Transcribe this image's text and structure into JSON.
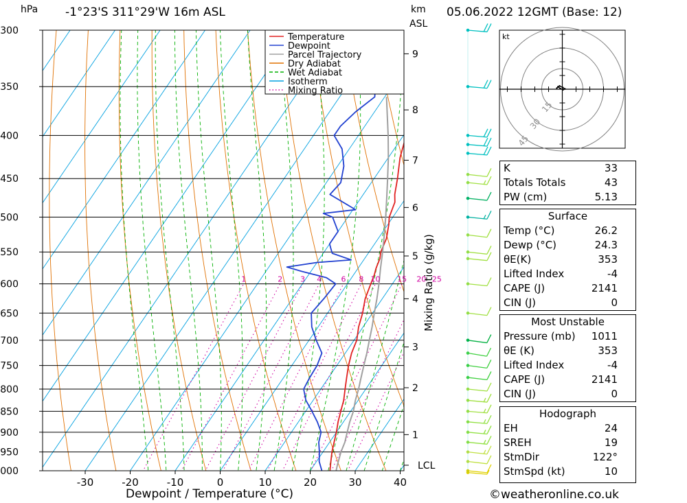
{
  "header": {
    "pressure_unit": "hPa",
    "location": "-1°23'S 311°29'W 16m ASL",
    "height_unit_line1": "km",
    "height_unit_line2": "ASL",
    "datetime": "05.06.2022 12GMT (Base: 12)"
  },
  "chart_data": [
    {
      "type": "line",
      "subtype": "skew-T log-P diagram",
      "xlabel": "Dewpoint / Temperature (°C)",
      "ylabel": "hPa",
      "secondary_ylabel": "km ASL",
      "mixing_ratio_axis_label": "Mixing Ratio (g/kg)",
      "x_ticks": [
        -30,
        -20,
        -10,
        0,
        10,
        20,
        30,
        40
      ],
      "x_tick_labels": [
        "-30",
        "-20",
        "-10",
        "0",
        "10",
        "20",
        "30",
        "40"
      ],
      "y_ticks": [
        300,
        350,
        400,
        450,
        500,
        550,
        600,
        650,
        700,
        750,
        800,
        850,
        900,
        950,
        1000
      ],
      "y_tick_labels": [
        "300",
        "350",
        "400",
        "450",
        "500",
        "550",
        "600",
        "650",
        "700",
        "750",
        "800",
        "850",
        "900",
        "950",
        "1000"
      ],
      "ylim": [
        1000,
        300
      ],
      "y_scale": "log",
      "height_ticks_km": [
        {
          "label": "9",
          "p": 320
        },
        {
          "label": "8",
          "p": 373
        },
        {
          "label": "7",
          "p": 428
        },
        {
          "label": "6",
          "p": 487
        },
        {
          "label": "5",
          "p": 556
        },
        {
          "label": "4",
          "p": 625
        },
        {
          "label": "3",
          "p": 713
        },
        {
          "label": "2",
          "p": 797
        },
        {
          "label": "1",
          "p": 906
        },
        {
          "label": "LCL",
          "p": 985
        }
      ],
      "mixing_ratio_labels": [
        "1",
        "2",
        "3",
        "4",
        "6",
        "8",
        "10",
        "15",
        "20",
        "25"
      ],
      "mixing_ratio_values": [
        1,
        2,
        3,
        4,
        6,
        8,
        10,
        15,
        20,
        25
      ],
      "legend": {
        "placement": "top-right",
        "entries": [
          {
            "name": "Temperature",
            "color": "#e02020",
            "style": "solid"
          },
          {
            "name": "Dewpoint",
            "color": "#2040d0",
            "style": "solid"
          },
          {
            "name": "Parcel Trajectory",
            "color": "#a0a0a0",
            "style": "solid"
          },
          {
            "name": "Dry Adiabat",
            "color": "#e07000",
            "style": "solid"
          },
          {
            "name": "Wet Adiabat",
            "color": "#00b000",
            "style": "dashed"
          },
          {
            "name": "Isotherm",
            "color": "#00a0e0",
            "style": "solid"
          },
          {
            "name": "Mixing Ratio",
            "color": "#d000a0",
            "style": "dotted"
          }
        ]
      },
      "series": [
        {
          "name": "Temperature",
          "color": "#e02020",
          "points": [
            [
              1011,
              26.2
            ],
            [
              1000,
              24.4
            ],
            [
              975,
              23.2
            ],
            [
              950,
              22.0
            ],
            [
              925,
              21.0
            ],
            [
              900,
              20.0
            ],
            [
              875,
              18.8
            ],
            [
              850,
              17.8
            ],
            [
              825,
              16.8
            ],
            [
              800,
              15.4
            ],
            [
              775,
              14.0
            ],
            [
              750,
              12.6
            ],
            [
              725,
              11.4
            ],
            [
              700,
              10.6
            ],
            [
              675,
              9.0
            ],
            [
              650,
              7.8
            ],
            [
              625,
              6.2
            ],
            [
              600,
              5.2
            ],
            [
              585,
              4.6
            ],
            [
              575,
              4.0
            ],
            [
              560,
              3.4
            ],
            [
              550,
              2.6
            ],
            [
              530,
              1.8
            ],
            [
              510,
              0.2
            ],
            [
              500,
              -0.8
            ],
            [
              480,
              -1.8
            ],
            [
              470,
              -3.0
            ],
            [
              450,
              -4.8
            ],
            [
              425,
              -7.4
            ],
            [
              400,
              -9.4
            ],
            [
              375,
              -12.4
            ],
            [
              350,
              -15.0
            ],
            [
              325,
              -17.8
            ],
            [
              300,
              -21.8
            ]
          ]
        },
        {
          "name": "Dewpoint",
          "color": "#2040d0",
          "points": [
            [
              1011,
              24.3
            ],
            [
              1000,
              22.6
            ],
            [
              975,
              20.6
            ],
            [
              950,
              19.2
            ],
            [
              925,
              17.6
            ],
            [
              900,
              16.6
            ],
            [
              875,
              14.2
            ],
            [
              850,
              11.4
            ],
            [
              825,
              8.4
            ],
            [
              800,
              6.2
            ],
            [
              775,
              5.8
            ],
            [
              750,
              5.6
            ],
            [
              725,
              4.8
            ],
            [
              700,
              1.6
            ],
            [
              675,
              -1.4
            ],
            [
              650,
              -3.6
            ],
            [
              625,
              -3.0
            ],
            [
              600,
              -2.6
            ],
            [
              590,
              -5.6
            ],
            [
              580,
              -12.0
            ],
            [
              573,
              -16.0
            ],
            [
              566,
              -10.0
            ],
            [
              562,
              -2.8
            ],
            [
              552,
              -8.0
            ],
            [
              545,
              -9.0
            ],
            [
              538,
              -10.0
            ],
            [
              520,
              -10.0
            ],
            [
              500,
              -13.4
            ],
            [
              495,
              -16.0
            ],
            [
              490,
              -9.4
            ],
            [
              470,
              -17.4
            ],
            [
              455,
              -16.8
            ],
            [
              435,
              -18.6
            ],
            [
              415,
              -21.6
            ],
            [
              400,
              -25.4
            ],
            [
              390,
              -25.4
            ],
            [
              375,
              -24.2
            ],
            [
              360,
              -22.2
            ],
            [
              345,
              -24.4
            ],
            [
              330,
              -26.2
            ],
            [
              315,
              -29.8
            ],
            [
              305,
              -34.4
            ],
            [
              300,
              -37.0
            ]
          ]
        },
        {
          "name": "Parcel Trajectory",
          "color": "#a0a0a0",
          "points": [
            [
              1011,
              26.2
            ],
            [
              985,
              25.2
            ],
            [
              950,
              24.0
            ],
            [
              925,
              23.4
            ],
            [
              900,
              22.4
            ],
            [
              875,
              21.4
            ],
            [
              850,
              20.6
            ],
            [
              825,
              19.4
            ],
            [
              800,
              18.4
            ],
            [
              775,
              17.2
            ],
            [
              750,
              16.0
            ],
            [
              725,
              14.8
            ],
            [
              700,
              13.4
            ],
            [
              675,
              12.0
            ],
            [
              650,
              10.4
            ],
            [
              625,
              8.8
            ],
            [
              600,
              7.0
            ],
            [
              575,
              5.0
            ],
            [
              550,
              3.0
            ],
            [
              525,
              0.8
            ],
            [
              500,
              -1.6
            ],
            [
              475,
              -4.2
            ],
            [
              450,
              -7.0
            ],
            [
              425,
              -10.0
            ],
            [
              400,
              -13.4
            ],
            [
              375,
              -17.2
            ],
            [
              360,
              -19.6
            ]
          ]
        }
      ],
      "dry_adiabats_theta_K": [
        230,
        240,
        250,
        260,
        270,
        280,
        290,
        300,
        310,
        320,
        330,
        340,
        350,
        360,
        370,
        380,
        390,
        400,
        410,
        420,
        430,
        440,
        450
      ],
      "wet_adiabats_theta_C": [
        -16,
        -12,
        -8,
        -4,
        0,
        4,
        8,
        12,
        16,
        20,
        24,
        28,
        32,
        36,
        40
      ],
      "isotherms_C": [
        -120,
        -110,
        -100,
        -90,
        -80,
        -70,
        -60,
        -50,
        -40,
        -30,
        -20,
        -10,
        0,
        10,
        20,
        30,
        40
      ]
    },
    {
      "type": "scatter",
      "subtype": "wind barbs",
      "unit": "kt",
      "barbs": [
        {
          "p": 1011,
          "dir": 100,
          "spd": 5,
          "color": "#e0d000"
        },
        {
          "p": 1000,
          "dir": 110,
          "spd": 10,
          "color": "#e0d000"
        },
        {
          "p": 975,
          "dir": 120,
          "spd": 10,
          "color": "#c0e040"
        },
        {
          "p": 950,
          "dir": 115,
          "spd": 15,
          "color": "#c0e040"
        },
        {
          "p": 925,
          "dir": 110,
          "spd": 15,
          "color": "#90e040"
        },
        {
          "p": 900,
          "dir": 105,
          "spd": 15,
          "color": "#90e040"
        },
        {
          "p": 875,
          "dir": 100,
          "spd": 15,
          "color": "#90e040"
        },
        {
          "p": 850,
          "dir": 100,
          "spd": 15,
          "color": "#a0e040"
        },
        {
          "p": 825,
          "dir": 105,
          "spd": 15,
          "color": "#a0e040"
        },
        {
          "p": 800,
          "dir": 110,
          "spd": 10,
          "color": "#a0e040"
        },
        {
          "p": 775,
          "dir": 120,
          "spd": 10,
          "color": "#40d040"
        },
        {
          "p": 750,
          "dir": 130,
          "spd": 10,
          "color": "#40d040"
        },
        {
          "p": 725,
          "dir": 150,
          "spd": 10,
          "color": "#40d040"
        },
        {
          "p": 700,
          "dir": 130,
          "spd": 10,
          "color": "#00b040"
        },
        {
          "p": 650,
          "dir": 120,
          "spd": 10,
          "color": "#a0e040"
        },
        {
          "p": 600,
          "dir": 110,
          "spd": 10,
          "color": "#a0e040"
        },
        {
          "p": 560,
          "dir": 110,
          "spd": 10,
          "color": "#a0e040"
        },
        {
          "p": 550,
          "dir": 115,
          "spd": 10,
          "color": "#a0e040"
        },
        {
          "p": 525,
          "dir": 120,
          "spd": 10,
          "color": "#a0e040"
        },
        {
          "p": 500,
          "dir": 110,
          "spd": 15,
          "color": "#00b0a0"
        },
        {
          "p": 475,
          "dir": 110,
          "spd": 10,
          "color": "#00b060"
        },
        {
          "p": 455,
          "dir": 110,
          "spd": 15,
          "color": "#a0e040"
        },
        {
          "p": 445,
          "dir": 115,
          "spd": 10,
          "color": "#a0e040"
        },
        {
          "p": 420,
          "dir": 100,
          "spd": 20,
          "color": "#00c0c0"
        },
        {
          "p": 410,
          "dir": 100,
          "spd": 20,
          "color": "#00c0c0"
        },
        {
          "p": 400,
          "dir": 100,
          "spd": 20,
          "color": "#00c0c0"
        },
        {
          "p": 350,
          "dir": 100,
          "spd": 20,
          "color": "#00c0c0"
        },
        {
          "p": 300,
          "dir": 100,
          "spd": 20,
          "color": "#00c0c0"
        }
      ]
    },
    {
      "type": "line",
      "subtype": "hodograph",
      "unit_label": "kt",
      "ring_labels": [
        "15",
        "30",
        "45"
      ],
      "ring_values_kt": [
        15,
        30,
        45
      ],
      "points_uv_kt": [
        [
          -4,
          0.8
        ],
        [
          -3.2,
          1.8
        ],
        [
          -2.0,
          2.4
        ],
        [
          0.4,
          1.2
        ],
        [
          2.0,
          0.2
        ],
        [
          0.6,
          -0.4
        ],
        [
          -1.4,
          0.4
        ],
        [
          -2.8,
          1.6
        ]
      ]
    }
  ],
  "indices": {
    "basic": [
      {
        "label": "K",
        "value": "33"
      },
      {
        "label": "Totals Totals",
        "value": "43"
      },
      {
        "label": "PW (cm)",
        "value": "5.13"
      }
    ],
    "surface": {
      "title": "Surface",
      "rows": [
        {
          "label": "Temp (°C)",
          "value": "26.2"
        },
        {
          "label": "Dewp (°C)",
          "value": "24.3"
        },
        {
          "label": "θE(K)",
          "value": "353"
        },
        {
          "label": "Lifted Index",
          "value": "-4"
        },
        {
          "label": "CAPE (J)",
          "value": "2141"
        },
        {
          "label": "CIN (J)",
          "value": "0"
        }
      ]
    },
    "most_unstable": {
      "title": "Most Unstable",
      "rows": [
        {
          "label": "Pressure (mb)",
          "value": "1011"
        },
        {
          "label": "θE (K)",
          "value": "353"
        },
        {
          "label": "Lifted Index",
          "value": "-4"
        },
        {
          "label": "CAPE (J)",
          "value": "2141"
        },
        {
          "label": "CIN (J)",
          "value": "0"
        }
      ]
    },
    "hodograph": {
      "title": "Hodograph",
      "rows": [
        {
          "label": "EH",
          "value": "24"
        },
        {
          "label": "SREH",
          "value": "19"
        },
        {
          "label": "StmDir",
          "value": "122°"
        },
        {
          "label": "StmSpd (kt)",
          "value": "10"
        }
      ]
    }
  },
  "footer": {
    "credit": "©weatheronline.co.uk"
  }
}
